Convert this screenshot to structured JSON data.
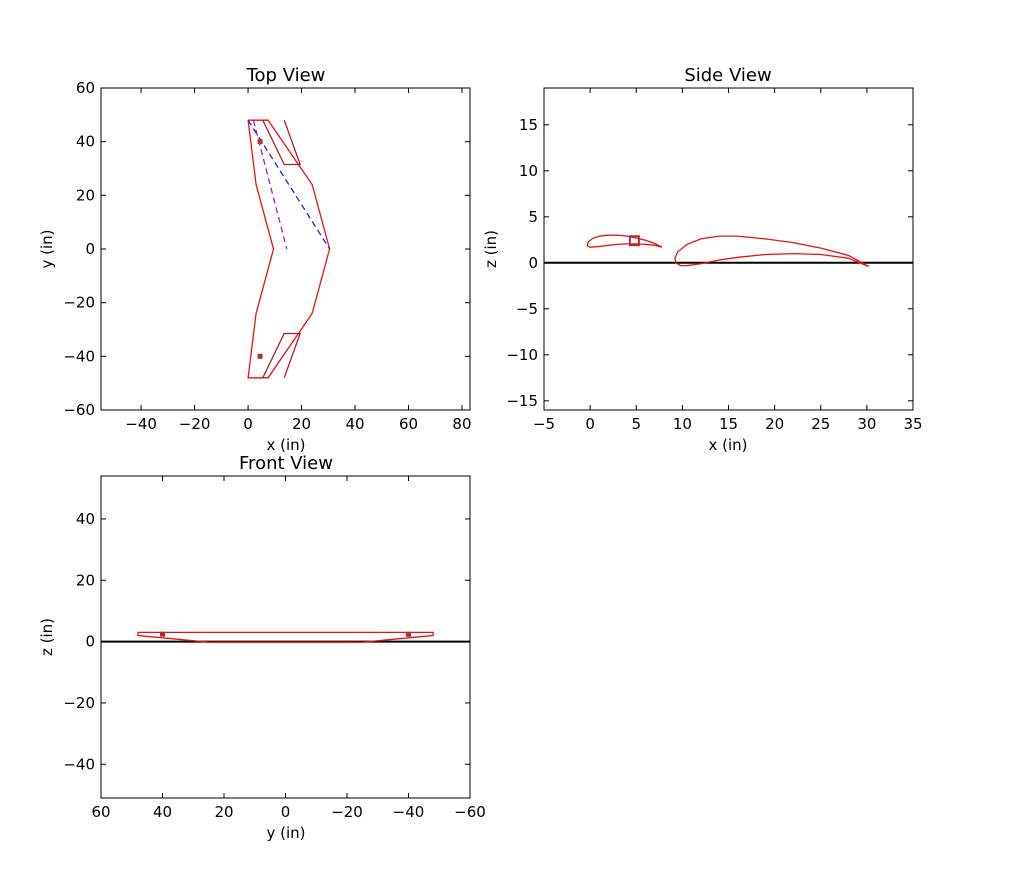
{
  "chart_data": [
    {
      "type": "line",
      "title": "Top View",
      "xlabel": "x (in)",
      "ylabel": "y (in)",
      "xlim": [
        -55,
        83
      ],
      "ylim": [
        -60,
        60
      ],
      "xticks": [
        -40,
        -20,
        0,
        20,
        40,
        60,
        80
      ],
      "yticks": [
        -60,
        -40,
        -20,
        0,
        20,
        40,
        60
      ],
      "grid": false,
      "series": [
        {
          "style": "wing-outline",
          "color": "#e8120f",
          "dash": "solid",
          "x": [
            0,
            7.5,
            24,
            30.5,
            24,
            7.5,
            0,
            3,
            9.5,
            3,
            0
          ],
          "y": [
            48,
            48,
            24,
            0,
            -24,
            -48,
            -48,
            -24,
            0,
            24,
            48
          ]
        },
        {
          "style": "control-surface-upper",
          "color": "#b02020",
          "dash": "solid",
          "x": [
            5.5,
            13.5,
            19.5,
            13.5
          ],
          "y": [
            48,
            31.5,
            31.5,
            48
          ]
        },
        {
          "style": "control-surface-lower",
          "color": "#b02020",
          "dash": "solid",
          "x": [
            5.5,
            13.5,
            19.5,
            13.5
          ],
          "y": [
            -48,
            -31.5,
            -31.5,
            -48
          ]
        },
        {
          "style": "quarter-chord",
          "color": "#2020e0",
          "dash": "dashed",
          "x": [
            0,
            30.5
          ],
          "y": [
            48,
            0
          ]
        },
        {
          "style": "neutral-line",
          "color": "#a020c0",
          "dash": "dashed",
          "x": [
            2,
            14.5
          ],
          "y": [
            48,
            0
          ]
        },
        {
          "style": "mass-points",
          "color": "#b03030",
          "marker": "square",
          "x": [
            4.5,
            4.5
          ],
          "y": [
            40,
            -40
          ]
        }
      ]
    },
    {
      "type": "line",
      "title": "Side View",
      "xlabel": "x (in)",
      "ylabel": "z (in)",
      "xlim": [
        -5,
        35
      ],
      "ylim": [
        -16,
        19
      ],
      "xticks": [
        -5,
        0,
        5,
        10,
        15,
        20,
        25,
        30,
        35
      ],
      "yticks": [
        -15,
        -10,
        -5,
        0,
        5,
        10,
        15
      ],
      "grid": false,
      "series": [
        {
          "style": "tail-airfoil",
          "color": "#e8120f",
          "dash": "solid",
          "x": [
            7.8,
            7,
            6,
            5,
            4,
            3,
            2,
            1,
            0.3,
            -0.2,
            -0.3,
            0,
            0.8,
            2,
            3,
            4,
            5,
            6,
            7,
            7.8
          ],
          "y": [
            1.7,
            2.1,
            2.45,
            2.7,
            2.9,
            3.0,
            3.0,
            2.9,
            2.65,
            2.3,
            1.85,
            1.7,
            1.75,
            1.9,
            2.0,
            2.05,
            2.05,
            2.0,
            1.9,
            1.7
          ]
        },
        {
          "style": "main-airfoil",
          "color": "#e8120f",
          "dash": "solid",
          "x": [
            30.2,
            28,
            25,
            22,
            19,
            16,
            14,
            12,
            10.5,
            9.5,
            9.2,
            9.3,
            9.8,
            10.5,
            12,
            14,
            16,
            19,
            22,
            25,
            28,
            30.2
          ],
          "y": [
            -0.4,
            0.8,
            1.6,
            2.2,
            2.6,
            2.9,
            2.9,
            2.6,
            2.0,
            1.2,
            0.5,
            0.0,
            -0.3,
            -0.3,
            -0.1,
            0.3,
            0.6,
            0.9,
            1.0,
            0.9,
            0.5,
            -0.4
          ]
        },
        {
          "style": "mass-point",
          "color": "#b03030",
          "marker": "square",
          "x": [
            4.8
          ],
          "y": [
            2.4
          ]
        }
      ],
      "hline": 0
    },
    {
      "type": "line",
      "title": "Front View",
      "xlabel": "y (in)",
      "ylabel": "z (in)",
      "xlim": [
        60,
        -60
      ],
      "ylim": [
        -51,
        54
      ],
      "xticks": [
        60,
        40,
        20,
        0,
        -20,
        -40,
        -60
      ],
      "yticks": [
        -40,
        -20,
        0,
        20,
        40
      ],
      "grid": false,
      "series": [
        {
          "style": "wing-front-outline",
          "color": "#e8120f",
          "dash": "solid",
          "x": [
            48,
            -48,
            -48,
            -25,
            25,
            48,
            48
          ],
          "y": [
            3,
            3,
            2,
            -0.2,
            -0.2,
            2,
            3
          ]
        },
        {
          "style": "mass-points",
          "color": "#b03030",
          "marker": "square",
          "x": [
            40,
            -40
          ],
          "y": [
            2.4,
            2.4
          ]
        }
      ],
      "hline": 0
    }
  ]
}
